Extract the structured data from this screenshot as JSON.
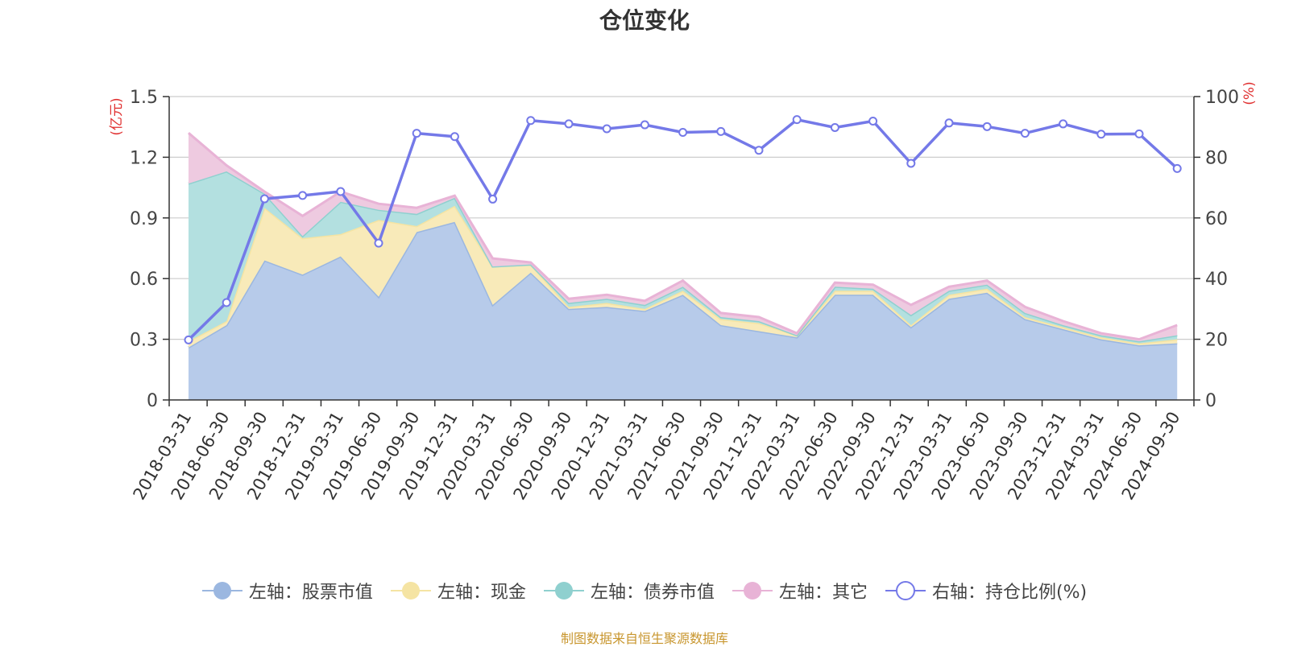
{
  "chart_data": {
    "type": "area",
    "title": "仓位变化",
    "y_left_label": "(亿元)",
    "y_right_label": "(%)",
    "ylim_left": [
      0,
      1.5
    ],
    "ylim_right": [
      0,
      100
    ],
    "y_left_ticks": [
      "0",
      "0.3",
      "0.6",
      "0.9",
      "1.2",
      "1.5"
    ],
    "y_right_ticks": [
      "0",
      "20",
      "40",
      "60",
      "80",
      "100"
    ],
    "grid": true,
    "legend_position": "bottom",
    "stacked": true,
    "categories": [
      "2018-03-31",
      "2018-06-30",
      "2018-09-30",
      "2018-12-31",
      "2019-03-31",
      "2019-06-30",
      "2019-09-30",
      "2019-12-31",
      "2020-03-31",
      "2020-06-30",
      "2020-09-30",
      "2020-12-31",
      "2021-03-31",
      "2021-06-30",
      "2021-09-30",
      "2021-12-31",
      "2022-03-31",
      "2022-06-30",
      "2022-09-30",
      "2022-12-31",
      "2023-03-31",
      "2023-06-30",
      "2023-09-30",
      "2023-12-31",
      "2024-03-31",
      "2024-06-30",
      "2024-09-30"
    ],
    "series": [
      {
        "name": "左轴：股票市值",
        "axis": "left",
        "kind": "area",
        "color": "#9bb7e0",
        "fill": "#b7cbea",
        "values": [
          0.26,
          0.37,
          0.69,
          0.62,
          0.71,
          0.51,
          0.83,
          0.88,
          0.47,
          0.63,
          0.45,
          0.46,
          0.44,
          0.52,
          0.37,
          0.34,
          0.31,
          0.52,
          0.52,
          0.36,
          0.5,
          0.53,
          0.4,
          0.35,
          0.3,
          0.27,
          0.28
        ]
      },
      {
        "name": "左轴：现金",
        "axis": "left",
        "kind": "area",
        "color": "#f5e4a3",
        "fill": "#f8eab9",
        "values": [
          0.03,
          0.02,
          0.26,
          0.18,
          0.11,
          0.38,
          0.03,
          0.08,
          0.19,
          0.04,
          0.01,
          0.02,
          0.01,
          0.02,
          0.03,
          0.04,
          0.01,
          0.02,
          0.02,
          0.01,
          0.02,
          0.02,
          0.01,
          0.01,
          0.01,
          0.01,
          0.02
        ]
      },
      {
        "name": "左轴：债券市值",
        "axis": "left",
        "kind": "area",
        "color": "#8fd0cf",
        "fill": "#b3e0e0",
        "values": [
          0.78,
          0.74,
          0.07,
          0.01,
          0.16,
          0.05,
          0.06,
          0.04,
          0.0,
          0.0,
          0.02,
          0.02,
          0.02,
          0.02,
          0.01,
          0.01,
          0.0,
          0.02,
          0.01,
          0.05,
          0.02,
          0.02,
          0.02,
          0.01,
          0.01,
          0.01,
          0.02
        ]
      },
      {
        "name": "左轴：其它",
        "axis": "left",
        "kind": "area",
        "color": "#e8b3d6",
        "fill": "#eecae0",
        "values": [
          0.25,
          0.03,
          0.01,
          0.1,
          0.05,
          0.03,
          0.03,
          0.01,
          0.04,
          0.01,
          0.02,
          0.02,
          0.02,
          0.03,
          0.02,
          0.02,
          0.01,
          0.02,
          0.02,
          0.05,
          0.02,
          0.02,
          0.03,
          0.02,
          0.01,
          0.01,
          0.05
        ]
      },
      {
        "name": "右轴：持仓比例(%)",
        "axis": "right",
        "kind": "line",
        "color": "#7479e8",
        "values": [
          19.8,
          32.1,
          66.3,
          67.4,
          68.7,
          51.7,
          87.9,
          86.8,
          66.2,
          92.1,
          91.0,
          89.4,
          90.7,
          88.2,
          88.5,
          82.3,
          92.4,
          89.8,
          91.9,
          78.0,
          91.3,
          90.1,
          87.9,
          91.0,
          87.6,
          87.7,
          76.3
        ]
      }
    ]
  },
  "footer": {
    "source": "制图数据来自恒生聚源数据库"
  }
}
